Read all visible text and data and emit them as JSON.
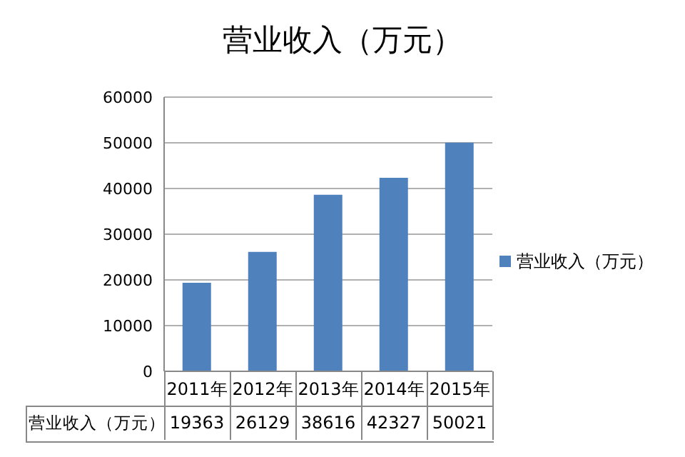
{
  "chart_data": {
    "type": "bar",
    "title": "营业收入（万元）",
    "categories": [
      "2011年",
      "2012年",
      "2013年",
      "2014年",
      "2015年"
    ],
    "series": [
      {
        "name": "营业收入（万元）",
        "color": "#4f81bd",
        "values": [
          19363,
          26129,
          38616,
          42327,
          50021
        ]
      }
    ],
    "ylim": [
      0,
      60000
    ],
    "yticks": [
      0,
      10000,
      20000,
      30000,
      40000,
      50000,
      60000
    ],
    "grid": "y",
    "legend": "right",
    "data_labels": true
  }
}
